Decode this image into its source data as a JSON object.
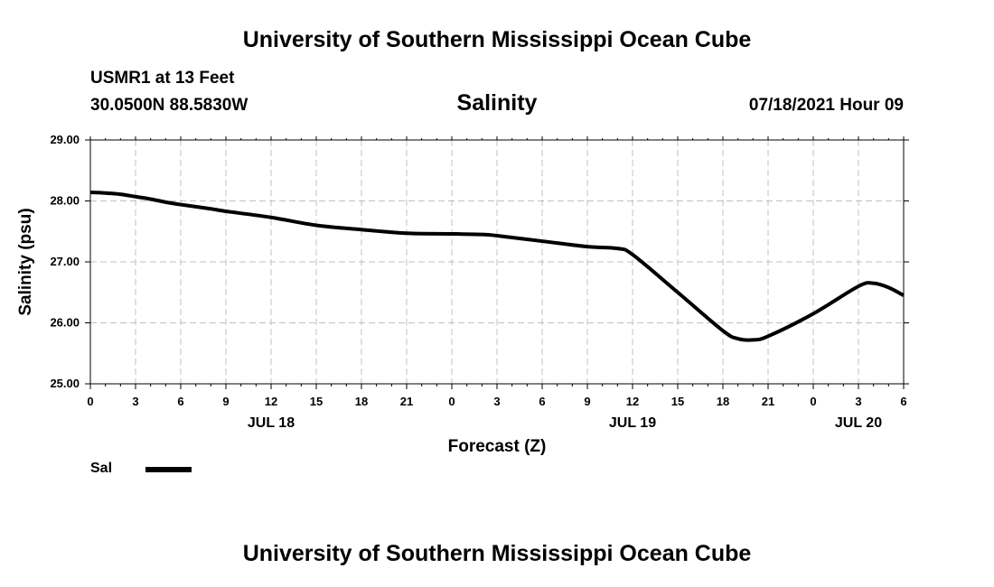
{
  "header": {
    "title": "University of Southern Mississippi Ocean Cube",
    "station": "USMR1 at 13 Feet",
    "coordinates": "30.0500N  88.5830W",
    "variable": "Salinity",
    "datetime": "07/18/2021 Hour 09"
  },
  "footer": {
    "title": "University of Southern Mississippi Ocean Cube"
  },
  "chart_data": {
    "type": "line",
    "title": "Salinity",
    "xlabel": "Forecast (Z)",
    "ylabel": "Salinity (psu)",
    "xlim": [
      "2021-07-18 00:00",
      "2021-07-20 06:00"
    ],
    "ylim": [
      25.0,
      29.0
    ],
    "y_ticks": [
      "25.00",
      "26.00",
      "27.00",
      "28.00",
      "29.00"
    ],
    "x_tick_labels": [
      "0",
      "3",
      "6",
      "9",
      "12",
      "15",
      "18",
      "21",
      "0",
      "3",
      "6",
      "9",
      "12",
      "15",
      "18",
      "21",
      "0",
      "3",
      "6"
    ],
    "x_tick_step_hours": 3,
    "date_labels": [
      {
        "label": "JUL 18",
        "at": "2021-07-18 12:00"
      },
      {
        "label": "JUL 19",
        "at": "2021-07-19 12:00"
      },
      {
        "label": "JUL 20",
        "at": "2021-07-20 03:00"
      }
    ],
    "grid": true,
    "legend_position": "bottom-left",
    "series": [
      {
        "name": "Sal",
        "color": "#000000",
        "points": [
          {
            "t": "2021-07-18 00:00",
            "y": 28.14
          },
          {
            "t": "2021-07-18 01:00",
            "y": 28.13
          },
          {
            "t": "2021-07-18 02:00",
            "y": 28.11
          },
          {
            "t": "2021-07-18 03:00",
            "y": 28.07
          },
          {
            "t": "2021-07-18 04:00",
            "y": 28.03
          },
          {
            "t": "2021-07-18 05:00",
            "y": 27.98
          },
          {
            "t": "2021-07-18 06:00",
            "y": 27.94
          },
          {
            "t": "2021-07-18 08:00",
            "y": 27.87
          },
          {
            "t": "2021-07-18 09:00",
            "y": 27.83
          },
          {
            "t": "2021-07-18 12:00",
            "y": 27.73
          },
          {
            "t": "2021-07-18 15:00",
            "y": 27.6
          },
          {
            "t": "2021-07-18 18:00",
            "y": 27.53
          },
          {
            "t": "2021-07-18 21:00",
            "y": 27.47
          },
          {
            "t": "2021-07-19 00:00",
            "y": 27.46
          },
          {
            "t": "2021-07-19 02:00",
            "y": 27.45
          },
          {
            "t": "2021-07-19 03:00",
            "y": 27.43
          },
          {
            "t": "2021-07-19 06:00",
            "y": 27.34
          },
          {
            "t": "2021-07-19 09:00",
            "y": 27.25
          },
          {
            "t": "2021-07-19 11:00",
            "y": 27.22
          },
          {
            "t": "2021-07-19 12:00",
            "y": 27.12
          },
          {
            "t": "2021-07-19 15:00",
            "y": 26.5
          },
          {
            "t": "2021-07-19 18:00",
            "y": 25.87
          },
          {
            "t": "2021-07-19 19:00",
            "y": 25.74
          },
          {
            "t": "2021-07-19 20:00",
            "y": 25.72
          },
          {
            "t": "2021-07-19 21:00",
            "y": 25.78
          },
          {
            "t": "2021-07-20 00:00",
            "y": 26.15
          },
          {
            "t": "2021-07-20 03:00",
            "y": 26.6
          },
          {
            "t": "2021-07-20 04:00",
            "y": 26.65
          },
          {
            "t": "2021-07-20 05:00",
            "y": 26.58
          },
          {
            "t": "2021-07-20 06:00",
            "y": 26.45
          }
        ]
      }
    ]
  }
}
